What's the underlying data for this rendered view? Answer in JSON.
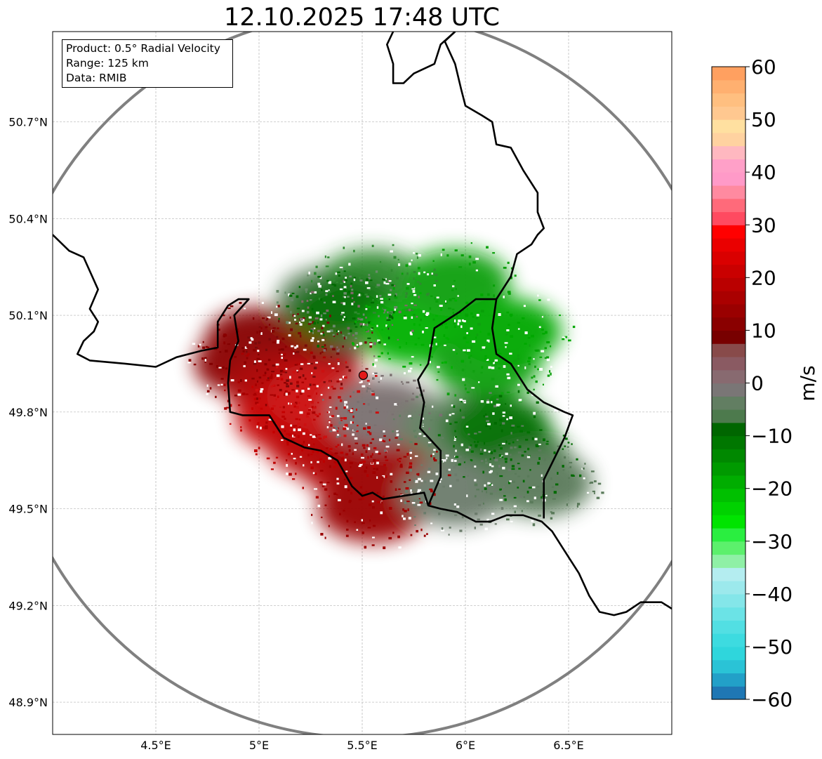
{
  "title": "12.10.2025 17:48 UTC",
  "info": {
    "product": "Product: 0.5° Radial Velocity",
    "range": "Range: 125 km",
    "data": "Data: RMIB"
  },
  "map": {
    "lon_range": [
      4.0,
      7.0
    ],
    "lat_range": [
      48.8,
      50.98
    ],
    "lon_ticks": [
      4.5,
      5.0,
      5.5,
      6.0,
      6.5
    ],
    "lon_tick_labels": [
      "4.5°E",
      "5°E",
      "5.5°E",
      "6°E",
      "6.5°E"
    ],
    "lat_ticks": [
      48.9,
      49.2,
      49.5,
      49.8,
      50.1,
      50.4,
      50.7
    ],
    "lat_tick_labels": [
      "48.9°N",
      "49.2°N",
      "49.5°N",
      "49.8°N",
      "50.1°N",
      "50.4°N",
      "50.7°N"
    ],
    "radar_site": {
      "lon": 5.505,
      "lat": 49.914
    },
    "range_km": 125,
    "borders": [
      [
        [
          4.0,
          50.35
        ],
        [
          4.08,
          50.3
        ],
        [
          4.15,
          50.28
        ],
        [
          4.22,
          50.18
        ],
        [
          4.18,
          50.12
        ],
        [
          4.22,
          50.08
        ],
        [
          4.2,
          50.05
        ],
        [
          4.15,
          50.02
        ],
        [
          4.12,
          49.98
        ],
        [
          4.18,
          49.96
        ],
        [
          4.35,
          49.95
        ],
        [
          4.5,
          49.94
        ],
        [
          4.6,
          49.97
        ],
        [
          4.72,
          49.99
        ],
        [
          4.8,
          50.0
        ],
        [
          4.8,
          50.08
        ],
        [
          4.85,
          50.13
        ],
        [
          4.9,
          50.15
        ],
        [
          4.95,
          50.15
        ],
        [
          4.88,
          50.1
        ],
        [
          4.9,
          50.02
        ],
        [
          4.86,
          49.96
        ],
        [
          4.85,
          49.89
        ],
        [
          4.86,
          49.8
        ],
        [
          4.92,
          49.79
        ],
        [
          5.05,
          49.79
        ],
        [
          5.12,
          49.72
        ],
        [
          5.22,
          49.69
        ],
        [
          5.3,
          49.68
        ],
        [
          5.38,
          49.65
        ],
        [
          5.45,
          49.57
        ],
        [
          5.5,
          49.54
        ],
        [
          5.55,
          49.55
        ],
        [
          5.6,
          49.53
        ],
        [
          5.7,
          49.54
        ],
        [
          5.8,
          49.55
        ],
        [
          5.82,
          49.51
        ],
        [
          5.88,
          49.5
        ],
        [
          5.96,
          49.49
        ],
        [
          6.05,
          49.46
        ],
        [
          6.12,
          49.46
        ],
        [
          6.2,
          49.48
        ],
        [
          6.28,
          49.48
        ],
        [
          6.37,
          49.46
        ],
        [
          6.42,
          49.43
        ],
        [
          6.48,
          49.37
        ],
        [
          6.55,
          49.3
        ],
        [
          6.6,
          49.23
        ],
        [
          6.65,
          49.18
        ],
        [
          6.72,
          49.17
        ],
        [
          6.78,
          49.18
        ],
        [
          6.85,
          49.21
        ],
        [
          6.95,
          49.21
        ],
        [
          7.0,
          49.19
        ]
      ],
      [
        [
          5.82,
          49.51
        ],
        [
          5.88,
          49.6
        ],
        [
          5.88,
          49.68
        ],
        [
          5.78,
          49.75
        ],
        [
          5.8,
          49.83
        ],
        [
          5.77,
          49.9
        ],
        [
          5.82,
          49.95
        ],
        [
          5.85,
          50.06
        ],
        [
          5.97,
          50.11
        ],
        [
          6.05,
          50.15
        ],
        [
          6.15,
          50.15
        ],
        [
          6.13,
          50.06
        ],
        [
          6.15,
          49.98
        ],
        [
          6.22,
          49.95
        ],
        [
          6.3,
          49.87
        ],
        [
          6.38,
          49.83
        ],
        [
          6.48,
          49.8
        ],
        [
          6.52,
          49.79
        ],
        [
          6.48,
          49.72
        ],
        [
          6.38,
          49.59
        ],
        [
          6.38,
          49.47
        ]
      ],
      [
        [
          6.15,
          50.15
        ],
        [
          6.22,
          50.22
        ],
        [
          6.25,
          50.29
        ],
        [
          6.32,
          50.32
        ],
        [
          6.35,
          50.35
        ],
        [
          6.38,
          50.37
        ],
        [
          6.35,
          50.42
        ],
        [
          6.35,
          50.48
        ],
        [
          6.28,
          50.55
        ],
        [
          6.22,
          50.62
        ],
        [
          6.15,
          50.63
        ],
        [
          6.13,
          50.7
        ],
        [
          6.08,
          50.72
        ],
        [
          6.0,
          50.75
        ],
        [
          5.98,
          50.8
        ],
        [
          5.95,
          50.88
        ],
        [
          5.9,
          50.95
        ],
        [
          5.95,
          50.98
        ]
      ],
      [
        [
          5.95,
          50.98
        ],
        [
          5.88,
          50.94
        ],
        [
          5.85,
          50.88
        ],
        [
          5.75,
          50.85
        ],
        [
          5.7,
          50.82
        ],
        [
          5.65,
          50.82
        ],
        [
          5.65,
          50.88
        ],
        [
          5.62,
          50.94
        ],
        [
          5.65,
          50.98
        ]
      ]
    ],
    "echoes": [
      {
        "lon": 5.25,
        "lat": 50.0,
        "color": "#7a0a0a"
      },
      {
        "lon": 5.0,
        "lat": 50.02,
        "color": "#820000"
      },
      {
        "lon": 4.95,
        "lat": 49.95,
        "color": "#8a0000"
      },
      {
        "lon": 5.1,
        "lat": 49.88,
        "color": "#a80000"
      },
      {
        "lon": 5.15,
        "lat": 49.78,
        "color": "#c40000"
      },
      {
        "lon": 5.3,
        "lat": 49.7,
        "color": "#bc0000"
      },
      {
        "lon": 5.45,
        "lat": 49.64,
        "color": "#b00000"
      },
      {
        "lon": 5.6,
        "lat": 49.62,
        "color": "#a00000"
      },
      {
        "lon": 5.55,
        "lat": 49.5,
        "color": "#9a0000"
      },
      {
        "lon": 5.3,
        "lat": 49.85,
        "color": "#cc1010"
      },
      {
        "lon": 5.35,
        "lat": 50.15,
        "color": "#6a8a6a"
      },
      {
        "lon": 5.5,
        "lat": 50.1,
        "color": "#806868"
      },
      {
        "lon": 5.6,
        "lat": 49.8,
        "color": "#7a7070"
      },
      {
        "lon": 5.55,
        "lat": 50.2,
        "color": "#2f8a2f"
      },
      {
        "lon": 5.4,
        "lat": 50.12,
        "color": "#006a00"
      },
      {
        "lon": 5.75,
        "lat": 50.05,
        "color": "#00b000"
      },
      {
        "lon": 5.95,
        "lat": 50.2,
        "color": "#08a008"
      },
      {
        "lon": 6.1,
        "lat": 49.95,
        "color": "#10a010"
      },
      {
        "lon": 5.95,
        "lat": 49.75,
        "color": "#608060"
      },
      {
        "lon": 6.15,
        "lat": 49.75,
        "color": "#007000"
      },
      {
        "lon": 6.25,
        "lat": 49.65,
        "color": "#006a00"
      },
      {
        "lon": 5.95,
        "lat": 49.55,
        "color": "#6c7c6c"
      },
      {
        "lon": 6.35,
        "lat": 49.58,
        "color": "#5a7a5a"
      },
      {
        "lon": 6.2,
        "lat": 50.05,
        "color": "#00a800"
      }
    ]
  },
  "chart_data": {
    "type": "heatmap",
    "title": "12.10.2025 17:48 UTC",
    "xlabel": "",
    "ylabel": "",
    "colorbar": {
      "label": "m/s",
      "range": [
        -60,
        60
      ],
      "ticks": [
        60,
        50,
        40,
        30,
        20,
        10,
        0,
        -10,
        -20,
        -30,
        -40,
        -50,
        -60
      ],
      "tick_labels": [
        "60",
        "50",
        "40",
        "30",
        "20",
        "10",
        "0",
        "−10",
        "−20",
        "−30",
        "−40",
        "−50",
        "−60"
      ],
      "colors": [
        "#1f77b4",
        "#22a0c8",
        "#2ac3d6",
        "#2fd6dc",
        "#3ddbe0",
        "#52dfe3",
        "#6be3e6",
        "#84e6e9",
        "#9ce9ec",
        "#b4edf0",
        "#8ff0a6",
        "#5cf06c",
        "#2aee40",
        "#00e400",
        "#00d200",
        "#00c000",
        "#00ad00",
        "#009a00",
        "#008800",
        "#007700",
        "#006600",
        "#4d7a4d",
        "#627e62",
        "#7a7676",
        "#886a70",
        "#8a5a62",
        "#884a4a",
        "#780000",
        "#8a0000",
        "#9a0000",
        "#aa0000",
        "#ba0000",
        "#ca0000",
        "#da0000",
        "#ea0000",
        "#ff0000",
        "#ff4a60",
        "#ff6a7a",
        "#ff8aa0",
        "#ff9ac8",
        "#ffa0c8",
        "#ffb8c0",
        "#ffd2a0",
        "#ffe0a0",
        "#ffc890",
        "#ffbf80",
        "#ffb070",
        "#ffa060"
      ]
    }
  }
}
